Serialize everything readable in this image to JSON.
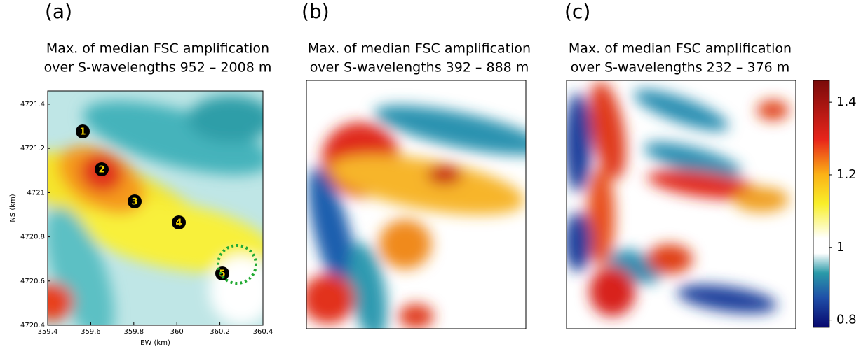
{
  "chart_data": [
    {
      "type": "heatmap",
      "panel": "(a)",
      "title": [
        "Max. of median FSC amplification",
        "over S-wavelengths 952 – 2008 m"
      ],
      "xlabel": "EW (km)",
      "ylabel": "NS (km)",
      "xlim": [
        359.4,
        360.4
      ],
      "xticks": [
        359.4,
        359.6,
        359.8,
        {
          "value": 360,
          "label": "360"
        },
        360.2,
        360.4
      ],
      "ylim": [
        4720.4,
        4721.46
      ],
      "yticks": [
        4720.4,
        4720.6,
        4720.8,
        {
          "value": 4721,
          "label": "4721"
        },
        4721.2,
        4721.4
      ],
      "annotations": [
        "1",
        "2",
        "3",
        "4",
        "5"
      ]
    },
    {
      "type": "heatmap",
      "panel": "(b)",
      "title": [
        "Max. of median FSC amplification",
        "over S-wavelengths 392 – 888 m"
      ]
    },
    {
      "type": "heatmap",
      "panel": "(c)",
      "title": [
        "Max. of median FSC amplification",
        "over S-wavelengths 232 – 376 m"
      ]
    }
  ],
  "colorbar": {
    "lim": [
      0.78,
      1.46
    ],
    "ticks": [
      0.8,
      {
        "value": 1,
        "label": "1"
      },
      1.2,
      1.4
    ]
  }
}
